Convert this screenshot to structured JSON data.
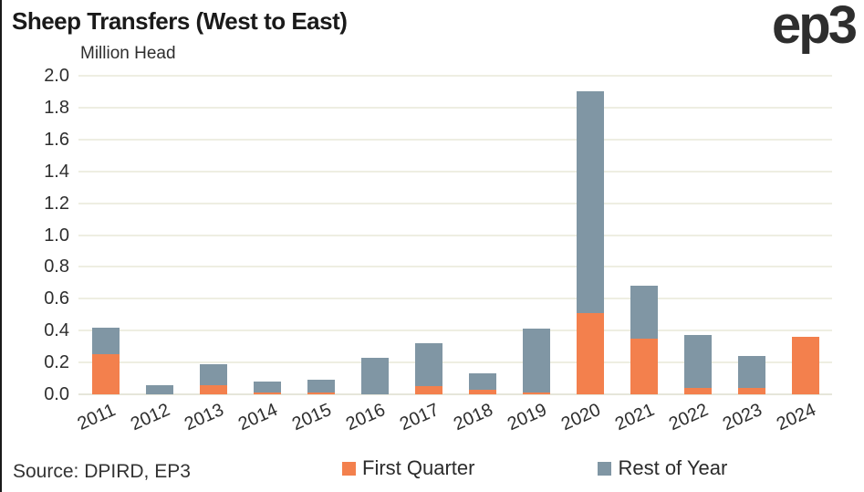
{
  "header": {
    "title": "Sheep Transfers (West to East)",
    "units_label": "Million Head",
    "logo_text": "ep3"
  },
  "footer": {
    "source": "Source: DPIRD, EP3"
  },
  "legend": {
    "items": [
      {
        "label": "First Quarter",
        "color": "#f3804d"
      },
      {
        "label": "Rest of Year",
        "color": "#8096a4"
      }
    ]
  },
  "chart_data": {
    "type": "bar",
    "stacked": true,
    "title": "Sheep Transfers (West to East)",
    "ylabel": "Million Head",
    "xlabel": "",
    "ylim": [
      0,
      2.0
    ],
    "ytick_step": 0.2,
    "grid": true,
    "legend_position": "bottom",
    "categories": [
      "2011",
      "2012",
      "2013",
      "2014",
      "2015",
      "2016",
      "2017",
      "2018",
      "2019",
      "2020",
      "2021",
      "2022",
      "2023",
      "2024"
    ],
    "series": [
      {
        "name": "First Quarter",
        "color": "#f3804d",
        "values": [
          0.25,
          0.0,
          0.06,
          0.01,
          0.01,
          0.0,
          0.05,
          0.03,
          0.01,
          0.51,
          0.35,
          0.04,
          0.04,
          0.36
        ]
      },
      {
        "name": "Rest of Year",
        "color": "#8096a4",
        "values": [
          0.17,
          0.06,
          0.13,
          0.07,
          0.08,
          0.23,
          0.27,
          0.1,
          0.4,
          1.39,
          0.33,
          0.33,
          0.2,
          0.0
        ]
      }
    ]
  }
}
